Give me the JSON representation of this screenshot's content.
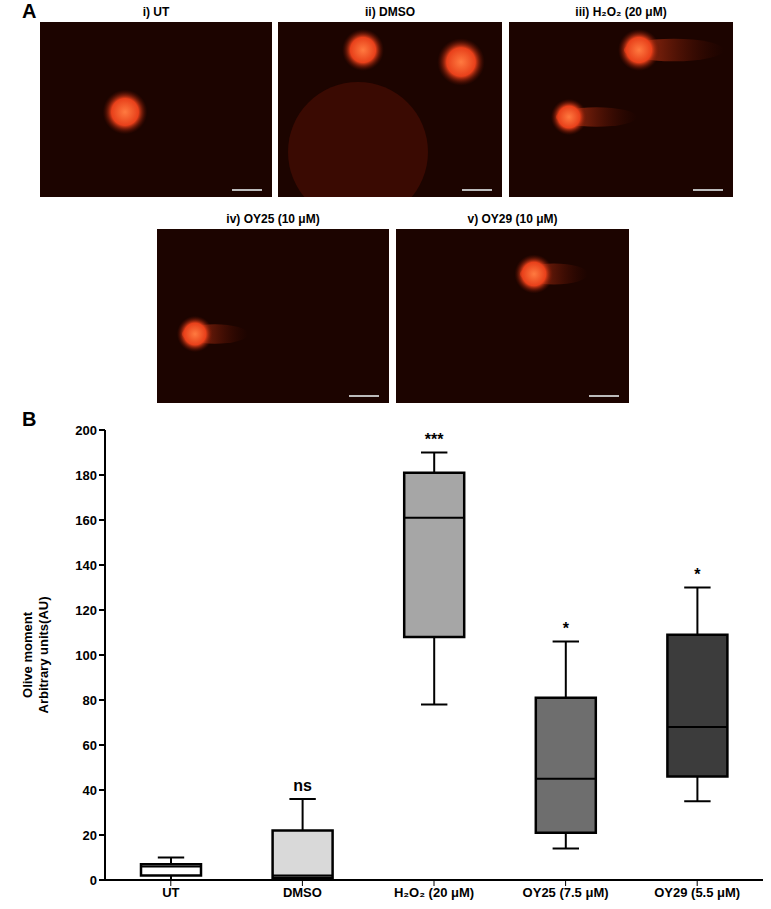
{
  "panel_labels": [
    "A",
    "B"
  ],
  "images": [
    {
      "title": "i) UT"
    },
    {
      "title": "ii) DMSO"
    },
    {
      "title": "iii) H₂O₂ (20 μM)"
    },
    {
      "title": "iv) OY25 (10 μM)"
    },
    {
      "title": "v) OY29 (10 μM)"
    }
  ],
  "chart_data": {
    "type": "box",
    "categories": [
      "UT",
      "DMSO",
      "H₂O₂ (20 μM)",
      "OY25 (7.5 μM)",
      "OY29 (5.5 μM)"
    ],
    "boxes": {
      "min": [
        0,
        0,
        78,
        14,
        35
      ],
      "q1": [
        2,
        1,
        108,
        21,
        46
      ],
      "median": [
        6,
        2,
        161,
        45,
        68
      ],
      "q3": [
        7,
        22,
        181,
        81,
        109
      ],
      "max": [
        10,
        36,
        190,
        106,
        130
      ]
    },
    "colors": [
      "#ffffff",
      "#d9d9d9",
      "#a6a6a6",
      "#6e6e6e",
      "#3c3c3c"
    ],
    "annotations": [
      null,
      "ns",
      "***",
      "*",
      "*"
    ],
    "ylabel": [
      "Olive moment",
      "Arbitrary units(AU)"
    ],
    "ylim": [
      0,
      200
    ],
    "yticks": [
      0,
      20,
      40,
      60,
      80,
      100,
      120,
      140,
      160,
      180,
      200
    ],
    "grid": false
  }
}
